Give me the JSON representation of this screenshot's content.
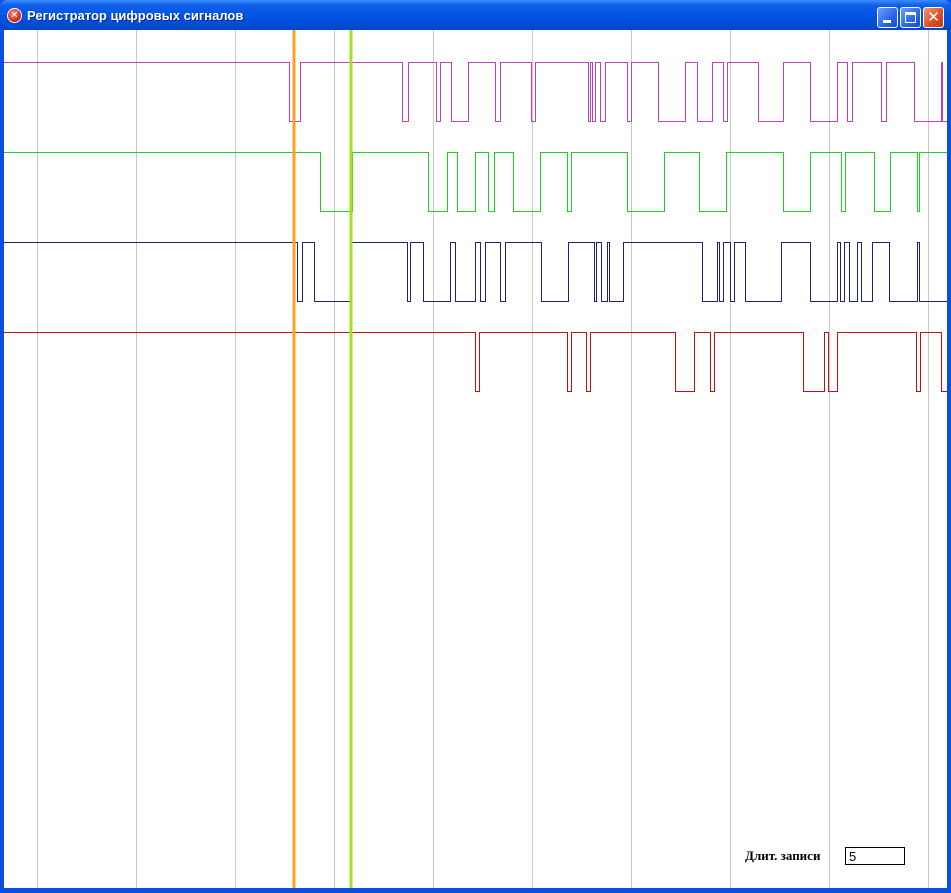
{
  "window": {
    "title": "Регистратор цифровых сигналов",
    "icon": "app-error-icon",
    "buttons": [
      "minimize-icon",
      "maximize-icon",
      "close-icon"
    ]
  },
  "recorder": {
    "duration_label": "Длит. записи",
    "duration_value": "5"
  },
  "colors": {
    "grid": "#c8c8c8",
    "cursor_a": "#ffa020",
    "cursor_b": "#a0e020",
    "background": "#ffffff"
  },
  "chart_data": {
    "type": "line",
    "xlim": [
      0,
      943
    ],
    "grid_x": [
      33,
      132,
      231,
      330,
      429,
      528,
      627,
      726,
      825,
      924
    ],
    "cursors": [
      {
        "x": 290,
        "color": "#ffa020"
      },
      {
        "x": 347,
        "color": "#a0e020"
      }
    ],
    "series": [
      {
        "color": "#c040c0",
        "transitions": [
          285,
          296,
          398,
          404,
          432,
          436,
          447,
          464,
          491,
          496,
          527,
          531,
          584,
          586,
          588,
          591,
          596,
          601,
          623,
          627,
          654,
          681,
          693,
          708,
          719,
          723,
          754,
          779,
          806,
          833,
          843,
          848,
          877,
          882,
          910,
          937,
          938
        ],
        "initial_high": true
      },
      {
        "color": "#20d020",
        "transitions": [
          316,
          348,
          424,
          443,
          453,
          471,
          484,
          490,
          509,
          536,
          563,
          567,
          623,
          660,
          695,
          722,
          779,
          806,
          837,
          841,
          870,
          886,
          913,
          915
        ],
        "initial_high": true
      },
      {
        "color": "#20207a",
        "transitions": [
          293,
          298,
          310,
          347,
          403,
          406,
          419,
          446,
          451,
          471,
          476,
          481,
          496,
          501,
          537,
          564,
          590,
          592,
          597,
          603,
          605,
          619,
          698,
          713,
          715,
          719,
          726,
          730,
          741,
          777,
          806,
          833,
          836,
          840,
          845,
          853,
          857,
          868,
          885,
          913,
          915
        ],
        "initial_high": true
      },
      {
        "color": "#c01010",
        "transitions": [
          471,
          475,
          563,
          567,
          582,
          586,
          671,
          690,
          706,
          710,
          799,
          820,
          824,
          833,
          912,
          916,
          937
        ],
        "initial_high": true
      }
    ]
  }
}
